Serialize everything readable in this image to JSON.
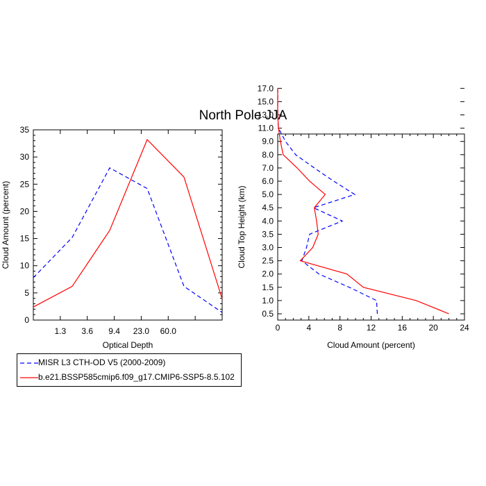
{
  "title": "North Pole JJA",
  "legend": [
    {
      "label": "MISR L3 CTH-OD V5 (2000-2009)",
      "color": "#0000ff",
      "dash": "dashed"
    },
    {
      "label": "b.e21.BSSP585cmip6.f09_g17.CMIP6-SSP5-8.5.102",
      "color": "#ff0000",
      "dash": "solid"
    }
  ],
  "chart_data": [
    {
      "type": "line",
      "xlabel": "Optical Depth",
      "ylabel": "Cloud Amount (percent)",
      "x_tick_labels": [
        "1.3",
        "3.6",
        "9.4",
        "23.0",
        "60.0"
      ],
      "y_ticks": [
        0,
        5,
        10,
        15,
        20,
        25,
        30,
        35
      ],
      "ylim": [
        0,
        35
      ],
      "x_bin_count": 7,
      "series": [
        {
          "name": "MISR L3 CTH-OD V5 (2000-2009)",
          "color": "#0000ff",
          "dash": "dashed",
          "values": [
            7.8,
            15.2,
            28.0,
            24.2,
            6.2,
            1.4
          ]
        },
        {
          "name": "b.e21.BSSP585cmip6.f09_g17.CMIP6-SSP5-8.5.102",
          "color": "#ff0000",
          "dash": "solid",
          "values": [
            2.4,
            6.2,
            16.5,
            33.2,
            26.3,
            3.9
          ]
        }
      ]
    },
    {
      "type": "line",
      "xlabel": "Cloud Amount (percent)",
      "ylabel": "Cloud Top Height (km)",
      "x_ticks": [
        0,
        4,
        8,
        12,
        16,
        20,
        24
      ],
      "xlim": [
        0,
        24
      ],
      "y_tick_labels": [
        "0.5",
        "1.0",
        "1.5",
        "2.0",
        "2.5",
        "3.0",
        "3.5",
        "4.0",
        "4.5",
        "5.0",
        "6.0",
        "7.0",
        "8.0",
        "9.0",
        "11.0",
        "13.0",
        "15.0",
        "17.0"
      ],
      "series": [
        {
          "name": "MISR L3 CTH-OD V5 (2000-2009)",
          "color": "#0000ff",
          "dash": "dashed",
          "values": [
            12.8,
            12.7,
            9.2,
            5.3,
            3.1,
            3.7,
            4.1,
            8.3,
            4.6,
            9.9,
            7.2,
            4.7,
            2.3,
            1.0,
            0.1,
            0,
            0,
            0
          ]
        },
        {
          "name": "b.e21.BSSP585cmip6.f09_g17.CMIP6-SSP5-8.5.102",
          "color": "#ff0000",
          "dash": "solid",
          "values": [
            22.0,
            17.8,
            11.0,
            8.9,
            2.9,
            4.5,
            5.2,
            5.0,
            4.7,
            6.1,
            4.1,
            2.5,
            0.7,
            0.35,
            0.1,
            0,
            0,
            0
          ]
        }
      ]
    }
  ]
}
